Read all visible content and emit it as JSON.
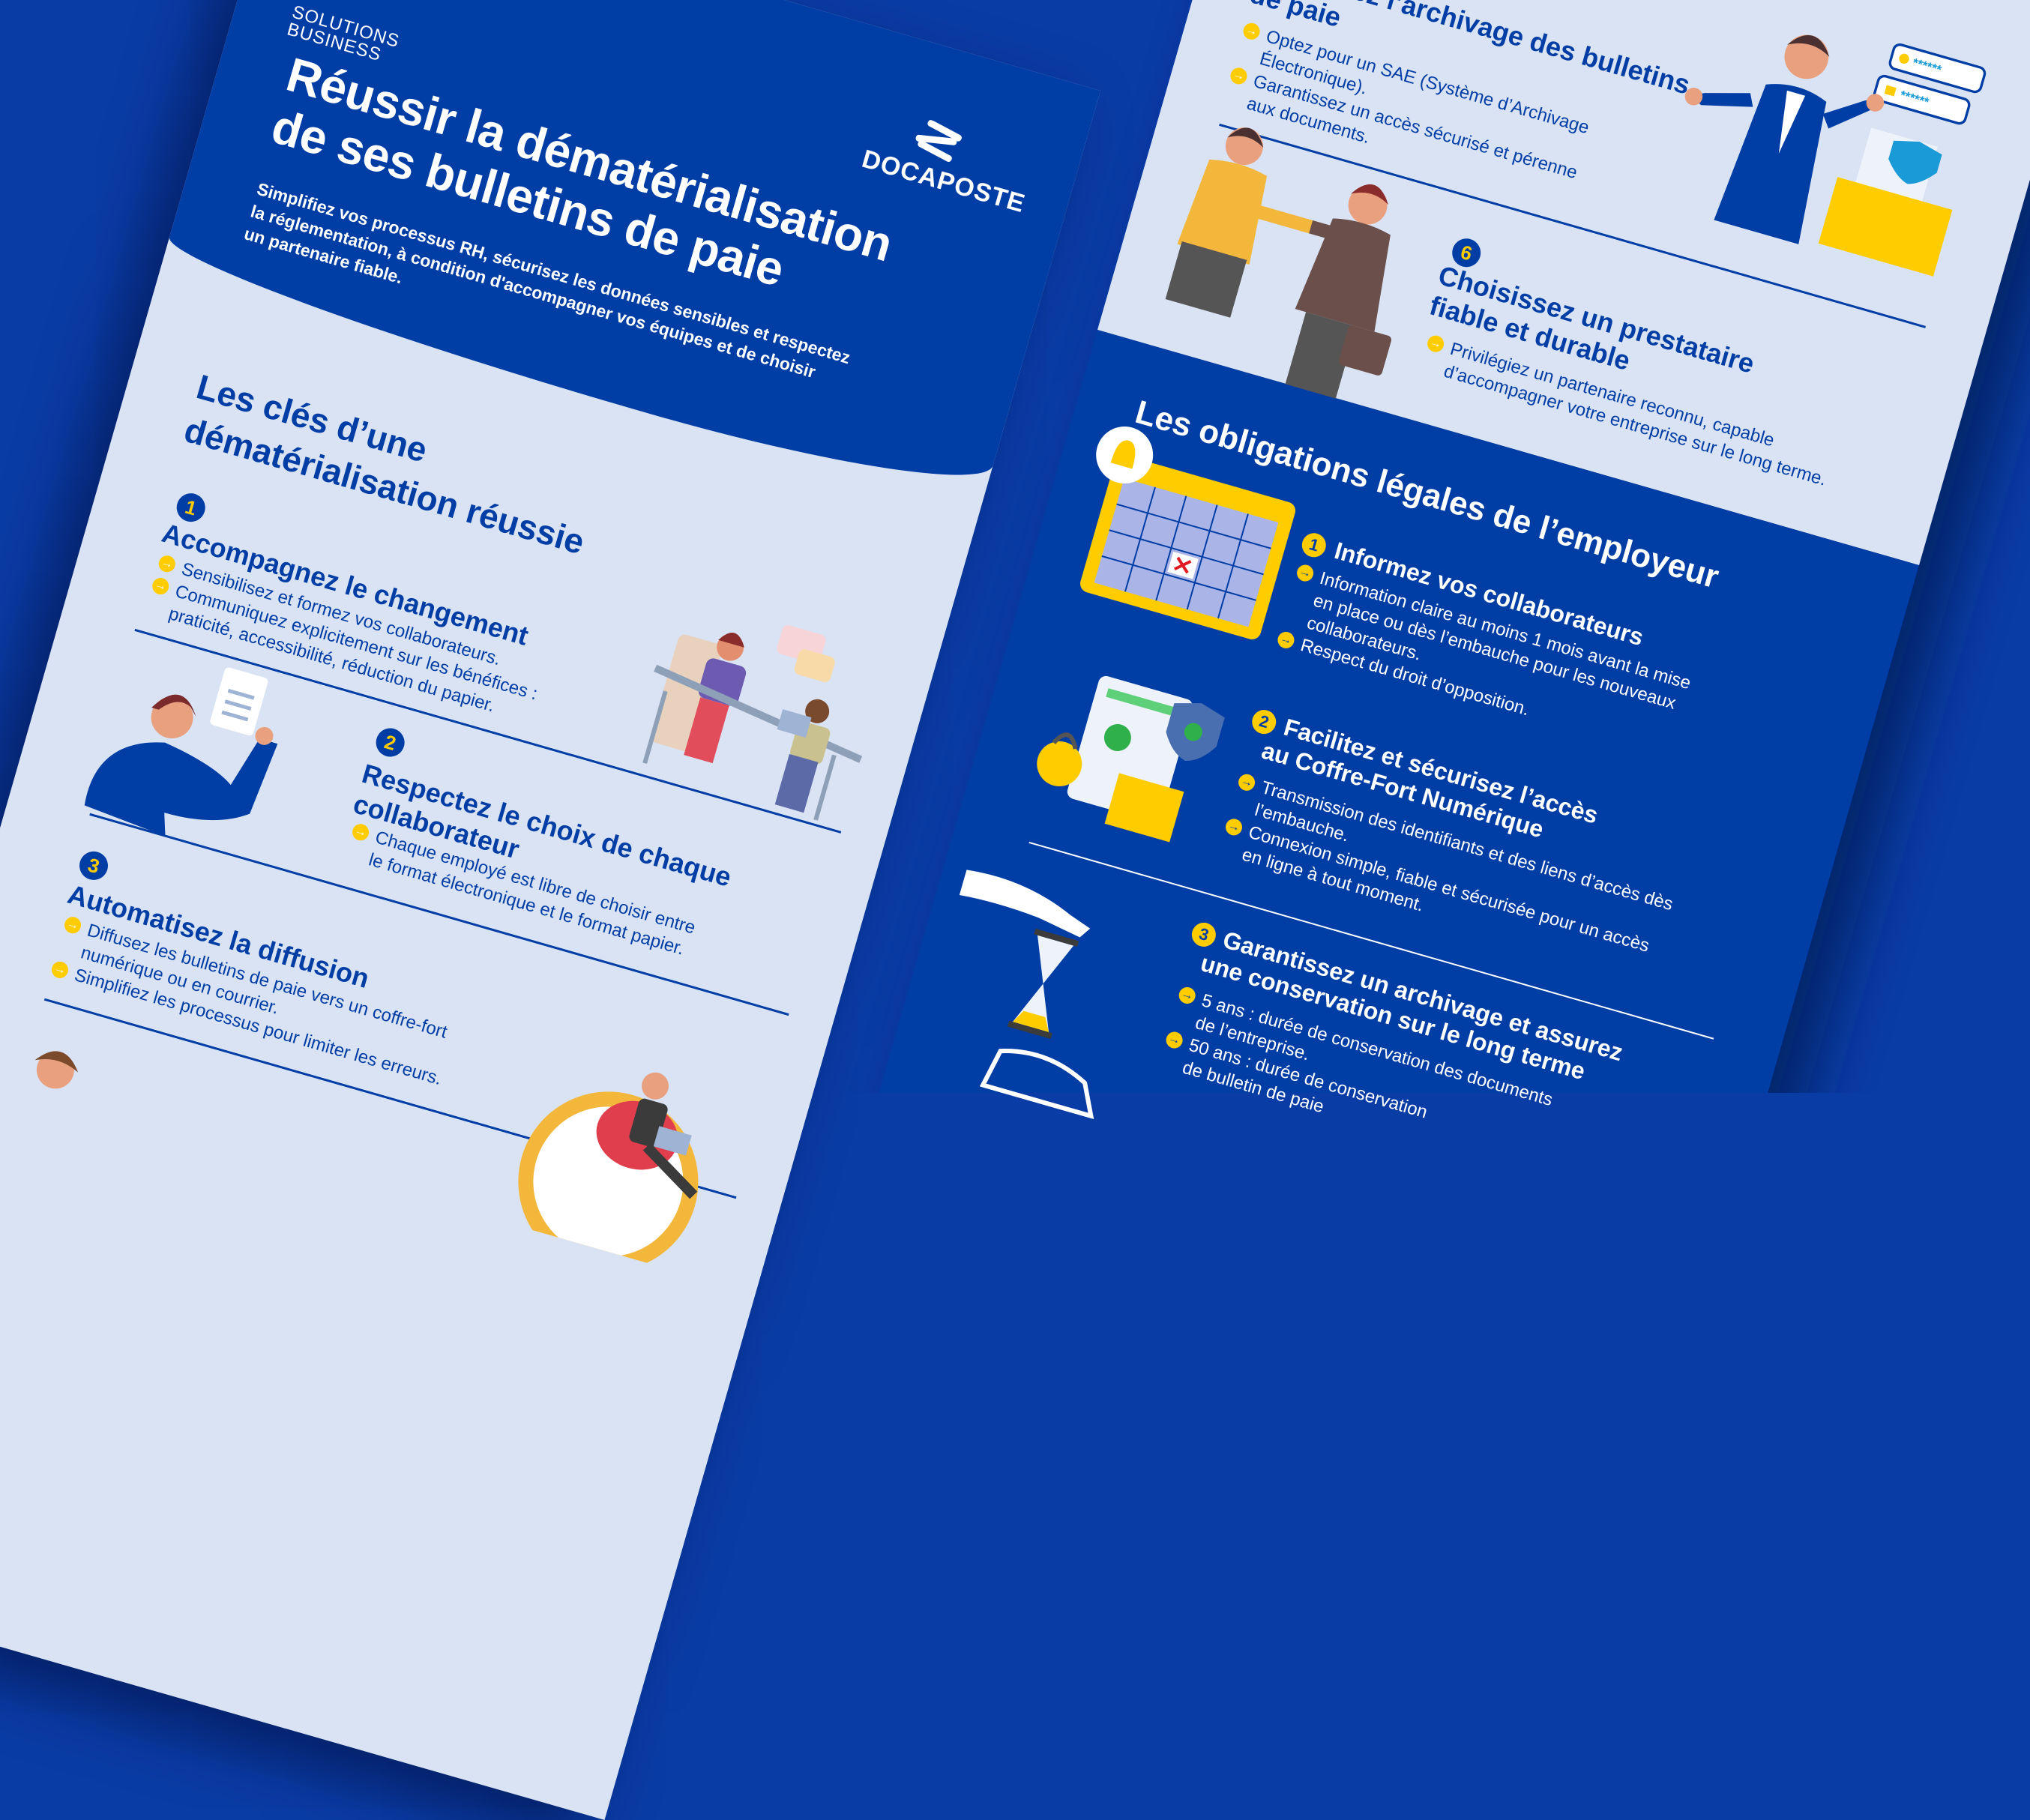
{
  "colors": {
    "brand_blue": "#003da5",
    "light_bg": "#dae3f3",
    "accent_yellow": "#ffcc00"
  },
  "left_page": {
    "logo_top": "SOLUTIONS",
    "logo_bottom": "BUSINESS",
    "brand": "DOCAPOSTE",
    "title_lines": [
      "Réussir la dématérialisation",
      "de ses bulletins de paie"
    ],
    "subtitle_lines": [
      "Simplifiez vos processus RH, sécurisez les données sensibles et respectez",
      "la réglementation, à condition d'accompagner vos équipes et de choisir",
      "un partenaire fiable."
    ],
    "section_title_lines": [
      "Les clés d’une",
      "dématérialisation réussie"
    ],
    "items": [
      {
        "number": "1",
        "title_lines": [
          "Accompagnez le changement"
        ],
        "bullets": [
          [
            "Sensibilisez et formez vos collaborateurs."
          ],
          [
            "Communiquez explicitement sur les bénéfices :",
            "praticité, accessibilité, réduction du papier."
          ]
        ]
      },
      {
        "number": "2",
        "title_lines": [
          "Respectez le choix de chaque",
          "collaborateur"
        ],
        "bullets": [
          [
            "Chaque employé est libre de choisir entre",
            "le format électronique et le format papier."
          ]
        ]
      },
      {
        "number": "3",
        "title_lines": [
          "Automatisez la diffusion"
        ],
        "bullets": [
          [
            "Diffusez les bulletins de paie vers un coffre-fort",
            "numérique ou en courrier."
          ],
          [
            "Simplifiez les processus pour limiter les erreurs."
          ]
        ]
      }
    ]
  },
  "right_page": {
    "items": [
      {
        "title_lines": [
          "Sécurisez l’archivage des bulletins",
          "de paie"
        ],
        "bullets": [
          [
            "Optez pour un SAE (Système d’Archivage",
            "Électronique)."
          ],
          [
            "Garantissez un accès sécurisé et pérenne",
            "aux documents."
          ]
        ],
        "password_mask": "******"
      },
      {
        "number": "6",
        "title_lines": [
          "Choisissez un prestataire",
          "fiable et durable"
        ],
        "bullets": [
          [
            "Privilégiez un partenaire reconnu, capable",
            "d’accompagner votre entreprise sur le long terme."
          ]
        ]
      }
    ],
    "section_title": "Les obligations légales de l’employeur",
    "obligations": [
      {
        "number": "1",
        "title_lines": [
          "Informez vos collaborateurs"
        ],
        "bullets": [
          [
            "Information claire au moins 1 mois avant la mise",
            "en place ou dès l’embauche pour les nouveaux",
            "collaborateurs."
          ],
          [
            "Respect du droit d’opposition."
          ]
        ]
      },
      {
        "number": "2",
        "title_lines": [
          "Facilitez et sécurisez l’accès",
          "au Coffre-Fort Numérique"
        ],
        "bullets": [
          [
            "Transmission des identifiants et des liens d’accès dès",
            "l’embauche."
          ],
          [
            "Connexion simple, fiable et sécurisée pour un accès",
            "en ligne à tout moment."
          ]
        ]
      },
      {
        "number": "3",
        "title_lines": [
          "Garantissez un archivage et assurez",
          "une conservation sur le long terme"
        ],
        "bullets": [
          [
            "5 ans : durée de conservation des documents",
            "de l’entreprise."
          ],
          [
            "50 ans : durée de conservation",
            "de bulletin de paie"
          ]
        ]
      }
    ]
  },
  "icons": {
    "bullet": "arrow-right-circle",
    "lock": "lock-icon",
    "shield": "shield-icon",
    "bell": "bell-icon",
    "calendar": "calendar-icon"
  }
}
